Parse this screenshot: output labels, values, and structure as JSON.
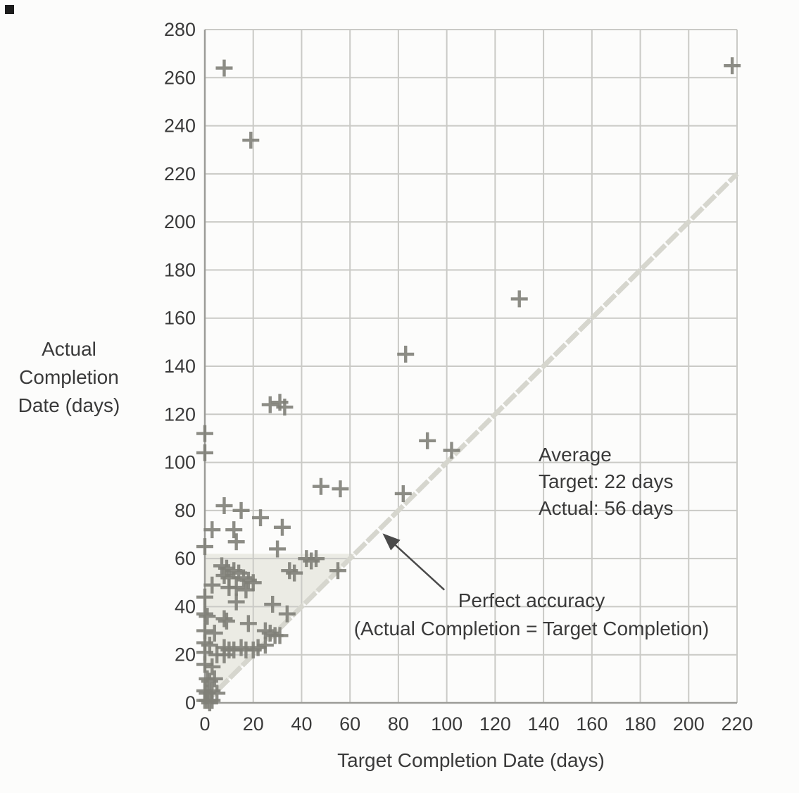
{
  "chart_data": {
    "type": "scatter",
    "title": "",
    "xlabel": "Target Completion Date (days)",
    "ylabel": "Actual Completion Date (days)",
    "ylabel_lines": [
      "Actual",
      "Completion",
      "Date (days)"
    ],
    "xlim": [
      0,
      220
    ],
    "ylim": [
      0,
      280
    ],
    "xticks": [
      0,
      20,
      40,
      60,
      80,
      100,
      120,
      140,
      160,
      180,
      200,
      220
    ],
    "yticks": [
      0,
      20,
      40,
      60,
      80,
      100,
      120,
      140,
      160,
      180,
      200,
      220,
      240,
      260,
      280
    ],
    "grid": true,
    "marker": "plus",
    "points": [
      [
        8,
        264
      ],
      [
        218,
        265
      ],
      [
        19,
        234
      ],
      [
        130,
        168
      ],
      [
        83,
        145
      ],
      [
        27,
        124
      ],
      [
        31,
        125
      ],
      [
        33,
        123
      ],
      [
        92,
        109
      ],
      [
        102,
        105
      ],
      [
        0,
        112
      ],
      [
        0,
        104
      ],
      [
        48,
        90
      ],
      [
        56,
        89
      ],
      [
        82,
        87
      ],
      [
        8,
        82
      ],
      [
        15,
        80
      ],
      [
        23,
        77
      ],
      [
        3,
        72
      ],
      [
        12,
        72
      ],
      [
        32,
        73
      ],
      [
        0,
        65
      ],
      [
        13,
        67
      ],
      [
        30,
        64
      ],
      [
        42,
        60
      ],
      [
        44,
        59
      ],
      [
        46,
        60
      ],
      [
        35,
        55
      ],
      [
        37,
        54
      ],
      [
        55,
        55
      ],
      [
        7,
        57
      ],
      [
        9,
        56
      ],
      [
        12,
        55
      ],
      [
        14,
        54
      ],
      [
        8,
        53
      ],
      [
        10,
        52
      ],
      [
        16,
        52
      ],
      [
        18,
        51
      ],
      [
        20,
        50
      ],
      [
        3,
        49
      ],
      [
        10,
        48
      ],
      [
        13,
        48
      ],
      [
        17,
        47
      ],
      [
        0,
        44
      ],
      [
        13,
        42
      ],
      [
        28,
        41
      ],
      [
        34,
        37
      ],
      [
        0,
        37
      ],
      [
        1,
        36
      ],
      [
        8,
        35
      ],
      [
        9,
        34
      ],
      [
        18,
        33
      ],
      [
        0,
        30
      ],
      [
        4,
        29
      ],
      [
        25,
        30
      ],
      [
        27,
        29
      ],
      [
        29,
        28
      ],
      [
        31,
        28
      ],
      [
        0,
        25
      ],
      [
        2,
        24
      ],
      [
        8,
        23
      ],
      [
        10,
        22
      ],
      [
        12,
        22
      ],
      [
        15,
        23
      ],
      [
        17,
        22
      ],
      [
        20,
        22
      ],
      [
        22,
        23
      ],
      [
        25,
        24
      ],
      [
        0,
        21
      ],
      [
        5,
        20
      ],
      [
        8,
        20
      ],
      [
        0,
        16
      ],
      [
        3,
        15
      ],
      [
        1,
        10
      ],
      [
        2,
        9
      ],
      [
        4,
        10
      ],
      [
        0,
        5
      ],
      [
        1,
        4
      ],
      [
        3,
        5
      ],
      [
        5,
        4
      ],
      [
        0,
        1
      ],
      [
        1,
        1
      ],
      [
        2,
        0
      ],
      [
        3,
        1
      ]
    ],
    "reference_line": {
      "from": [
        0,
        0
      ],
      "to": [
        220,
        220
      ]
    },
    "highlight_region": [
      [
        0,
        0
      ],
      [
        62,
        62
      ],
      [
        0,
        62
      ]
    ],
    "annotations": {
      "average": {
        "lines": [
          "Average",
          "Target: 22 days",
          "Actual: 56 days"
        ]
      },
      "perfect_accuracy": {
        "lines": [
          "Perfect accuracy",
          "(Actual Completion = Target Completion)"
        ],
        "arrow_from": [
          99,
          47
        ],
        "arrow_to": [
          74,
          70
        ]
      }
    },
    "colors": {
      "marker": "#7f7f78",
      "grid": "#cacac6",
      "axis": "#9c9c98",
      "reference_line": "#d6d6ce",
      "highlight": "#ebebe4",
      "text": "#3a3a3a",
      "arrow": "#4a4a4a"
    }
  }
}
